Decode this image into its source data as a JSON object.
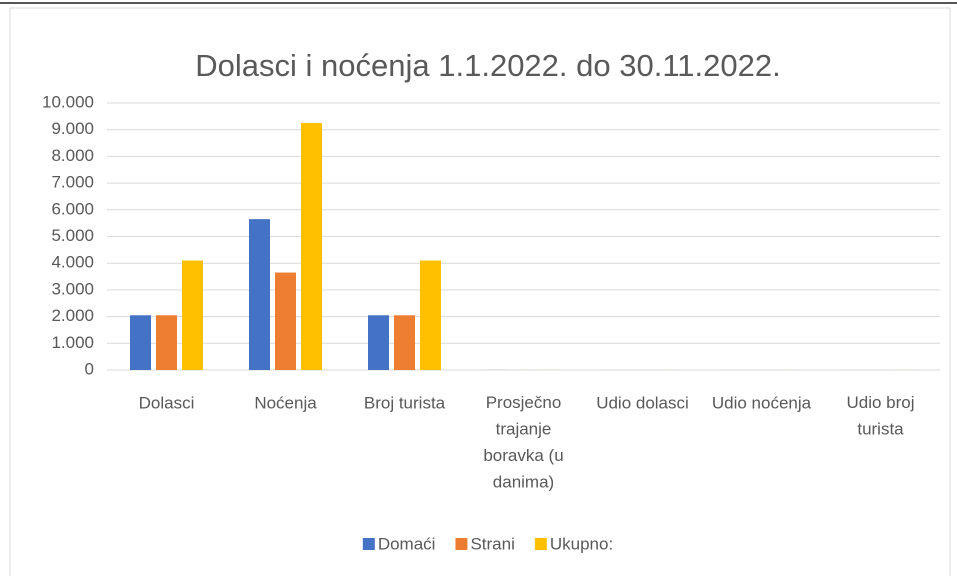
{
  "chart_data": {
    "type": "bar",
    "title": "Dolasci i noćenja 1.1.2022. do 30.11.2022.",
    "categories": [
      "Dolasci",
      "Noćenja",
      "Broj turista",
      "Prosječno trajanje boravka (u danima)",
      "Udio dolasci",
      "Udio noćenja",
      "Udio broj turista"
    ],
    "series": [
      {
        "name": "Domaći",
        "color": "#4472c4",
        "values": [
          2050,
          5650,
          2050,
          2.8,
          0.5,
          0.6,
          0.5
        ]
      },
      {
        "name": "Strani",
        "color": "#ed7d31",
        "values": [
          2050,
          3650,
          2050,
          1.8,
          0.5,
          0.4,
          0.5
        ]
      },
      {
        "name": "Ukupno:",
        "color": "#ffc000",
        "values": [
          4100,
          9250,
          4100,
          2.3,
          1,
          1,
          1
        ]
      }
    ],
    "ylim": [
      0,
      10000
    ],
    "yticks": [
      0,
      {
        "value": 1000,
        "label": "1.000"
      },
      {
        "value": 2000,
        "label": "2.000"
      },
      {
        "value": 3000,
        "label": "3.000"
      },
      {
        "value": 4000,
        "label": "4.000"
      },
      {
        "value": 5000,
        "label": "5.000"
      },
      {
        "value": 6000,
        "label": "6.000"
      },
      {
        "value": 7000,
        "label": "7.000"
      },
      {
        "value": 8000,
        "label": "8.000"
      },
      {
        "value": 9000,
        "label": "9.000"
      },
      {
        "value": 10000,
        "label": "10.000"
      }
    ],
    "grid": true,
    "legend": "bottom"
  }
}
